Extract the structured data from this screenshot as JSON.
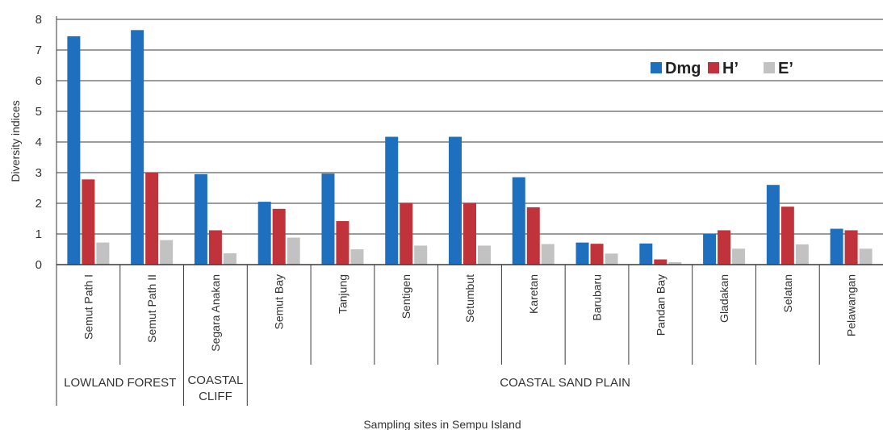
{
  "chart_data": {
    "type": "bar",
    "ylabel": "Diversity indices",
    "xlabel": "Sampling sites in Sempu Island",
    "ylim": [
      0,
      8
    ],
    "yticks": [
      0,
      1,
      2,
      3,
      4,
      5,
      6,
      7,
      8
    ],
    "grid": true,
    "legend_position": "top-right",
    "categories": [
      "Semut Path I",
      "Semut Path II",
      "Segara Anakan",
      "Semut Bay",
      "Tanjung",
      "Sentigen",
      "Setumbut",
      "Karetan",
      "Barubaru",
      "Pandan Bay",
      "Gladakan",
      "Selatan",
      "Pelawangan"
    ],
    "groups": [
      {
        "label": "LOWLAND FOREST",
        "span": 2
      },
      {
        "label_lines": [
          "COASTAL",
          "CLIFF"
        ],
        "span": 1
      },
      {
        "label": "COASTAL SAND PLAIN",
        "span": 10
      }
    ],
    "series": [
      {
        "name": "Dmg",
        "color": "#1f6fbf",
        "values": [
          7.45,
          7.65,
          2.95,
          2.05,
          2.97,
          4.17,
          4.17,
          2.85,
          0.72,
          0.69,
          1.0,
          2.6,
          1.17
        ]
      },
      {
        "name": "H’",
        "color": "#c1333a",
        "values": [
          2.78,
          3.0,
          1.12,
          1.82,
          1.42,
          2.02,
          2.02,
          1.87,
          0.68,
          0.17,
          1.12,
          1.89,
          1.12
        ]
      },
      {
        "name": "E’",
        "color": "#c2c2c2",
        "values": [
          0.72,
          0.8,
          0.37,
          0.88,
          0.5,
          0.62,
          0.62,
          0.67,
          0.36,
          0.08,
          0.52,
          0.66,
          0.52
        ]
      }
    ]
  }
}
